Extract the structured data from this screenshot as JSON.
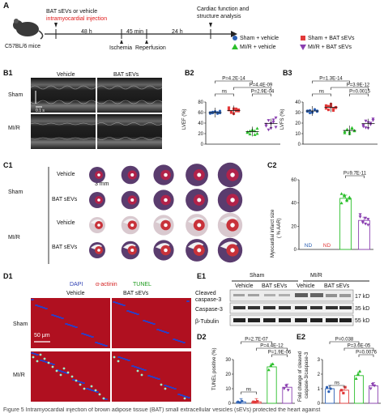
{
  "panel_labels": {
    "A": "A",
    "B1": "B1",
    "B2": "B2",
    "B3": "B3",
    "C1": "C1",
    "C2": "C2",
    "D1": "D1",
    "D2": "D2",
    "E1": "E1",
    "E2": "E2"
  },
  "panelA": {
    "mouse_label": "C57BL/6 mice",
    "treatment_line1": "BAT sEVs or vehicle",
    "treatment_line2": "intramyocardial injection",
    "t1": "48 h",
    "t2": "45 min",
    "t3": "24 h",
    "ischemia": "Ischemia",
    "reperfusion": "Reperfusion",
    "analysis_line1": "Cardiac function and",
    "analysis_line2": "structure analysis"
  },
  "legend": {
    "items": [
      "Sham + vehicle",
      "Sham + BAT sEVs",
      "MI/R + vehicle",
      "MI/R + BAT sEVs"
    ],
    "colors": [
      "#2b5fb3",
      "#e23a3a",
      "#2bbf2b",
      "#8a3fb0"
    ]
  },
  "echo": {
    "col1": "Vehicle",
    "col2": "BAT sEVs",
    "row1": "Sham",
    "row2": "MI/R",
    "scale_mm": "1 mm",
    "scale_s": "0.1 s"
  },
  "chart_data": [
    {
      "panel": "B2",
      "type": "scatter",
      "ylabel": "LVEF (%)",
      "yticks": [
        "0",
        "20",
        "40",
        "60",
        "80"
      ],
      "ylim": [
        0,
        80
      ],
      "categories": [
        "Sham + vehicle",
        "Sham + BAT sEVs",
        "MI/R + vehicle",
        "MI/R + BAT sEVs"
      ],
      "series": [
        {
          "values": [
            60,
            61,
            62,
            58,
            63,
            59,
            60,
            62,
            61,
            60
          ]
        },
        {
          "values": [
            65,
            60,
            58,
            67,
            63,
            70,
            62,
            68,
            64,
            66
          ]
        },
        {
          "values": [
            22,
            25,
            27,
            18,
            30,
            24,
            20,
            28,
            26,
            21
          ]
        },
        {
          "values": [
            38,
            45,
            30,
            42,
            50,
            35,
            28,
            40,
            47,
            33
          ]
        }
      ],
      "means": [
        60,
        64,
        24,
        39
      ],
      "annotations": [
        "P=4.2E-14",
        "P=4.4E-09",
        "P=2.9E-04",
        "ns"
      ]
    },
    {
      "panel": "B3",
      "type": "scatter",
      "ylabel": "LVFS (%)",
      "yticks": [
        "0",
        "10",
        "20",
        "30",
        "40"
      ],
      "ylim": [
        0,
        40
      ],
      "categories": [
        "Sham + vehicle",
        "Sham + BAT sEVs",
        "MI/R + vehicle",
        "MI/R + BAT sEVs"
      ],
      "series": [
        {
          "values": [
            31,
            32,
            30,
            33,
            31,
            32,
            30,
            31,
            33,
            32
          ]
        },
        {
          "values": [
            34,
            36,
            38,
            32,
            35,
            37,
            33,
            36,
            34,
            35
          ]
        },
        {
          "values": [
            12,
            14,
            10,
            15,
            13,
            11,
            14,
            12,
            16,
            13
          ]
        },
        {
          "values": [
            18,
            22,
            15,
            20,
            24,
            17,
            16,
            21,
            19,
            23
          ]
        }
      ],
      "means": [
        31.5,
        35,
        13,
        19.5
      ],
      "annotations": [
        "P=1.3E-14",
        "P=3.9E-12",
        "P=0.0015",
        "ns"
      ]
    },
    {
      "panel": "C2",
      "type": "bar",
      "ylabel": "Myocardial infarct size",
      "ylabel2": "( % AAR)",
      "yticks": [
        "0",
        "20",
        "40",
        "60"
      ],
      "ylim": [
        0,
        60
      ],
      "categories": [
        "Sham + vehicle",
        "Sham + BAT sEVs",
        "MI/R + vehicle",
        "MI/R + BAT sEVs"
      ],
      "values": [
        0,
        0,
        44,
        25
      ],
      "points": [
        [],
        [],
        [
          48,
          46,
          42,
          44,
          40,
          47,
          43,
          45
        ],
        [
          28,
          24,
          22,
          26,
          30,
          23,
          27,
          21
        ]
      ],
      "nd_labels": [
        "ND",
        "ND"
      ],
      "annotations": [
        "P=9.7E-11"
      ]
    },
    {
      "panel": "D2",
      "type": "bar",
      "ylabel": "TUNEL positive (%)",
      "yticks": [
        "0",
        "10",
        "20",
        "30"
      ],
      "ylim": [
        0,
        30
      ],
      "categories": [
        "Sham + vehicle",
        "Sham + BAT sEVs",
        "MI/R + vehicle",
        "MI/R + BAT sEVs"
      ],
      "values": [
        1,
        1,
        25,
        11
      ],
      "points": [
        [
          1,
          0.5,
          1.5
        ],
        [
          1,
          0.8,
          1.3
        ],
        [
          23,
          26,
          27
        ],
        [
          10,
          12,
          9
        ]
      ],
      "annotations": [
        "P=2.7E-07",
        "P=4.4E-12",
        "P=1.9E-06",
        "ns"
      ]
    },
    {
      "panel": "E2",
      "type": "bar",
      "ylabel": "Fold change of cleaved",
      "ylabel2": "caspase-3/caspase-3",
      "yticks": [
        "0",
        "1",
        "2",
        "3"
      ],
      "ylim": [
        0,
        3
      ],
      "categories": [
        "Sham + vehicle",
        "Sham + BAT sEVs",
        "MI/R + vehicle",
        "MI/R + BAT sEVs"
      ],
      "values": [
        1,
        0.9,
        1.9,
        1.2
      ],
      "points": [
        [
          1.1,
          0.8,
          1.0
        ],
        [
          0.9,
          0.7,
          1.1
        ],
        [
          1.7,
          2.0,
          2.2
        ],
        [
          1.0,
          1.3,
          1.2
        ]
      ],
      "annotations": [
        "P=0.038",
        "P=3.6E-05",
        "P=0.0076",
        "ns"
      ]
    }
  ],
  "c1": {
    "rowlabels": [
      "Sham",
      "MI/R"
    ],
    "sublabels": [
      "Vehicle",
      "BAT sEVs",
      "Vehicle",
      "BAT sEVs"
    ],
    "scale": "3 mm"
  },
  "d1": {
    "dapi": "DAPI",
    "actinin": "α-actinin",
    "tunel": "TUNEL",
    "col1": "Vehicle",
    "col2": "BAT sEVs",
    "row1": "Sham",
    "row2": "MI/R",
    "scale": "50 μm"
  },
  "e1": {
    "groups": [
      "Sham",
      "MI/R"
    ],
    "cols": [
      "Vehicle",
      "BAT sEVs",
      "Vehicle",
      "BAT sEVs"
    ],
    "rows": [
      "Cleaved",
      "caspase-3",
      "Caspase-3",
      "β-Tubulin"
    ],
    "kd": [
      "17 kD",
      "35 kD",
      "55 kD"
    ]
  },
  "caption": "Figure 5 Intramyocardial injection of brown adipose tissue (BAT) small extracellular vesicles (sEVs) protected the heart against"
}
